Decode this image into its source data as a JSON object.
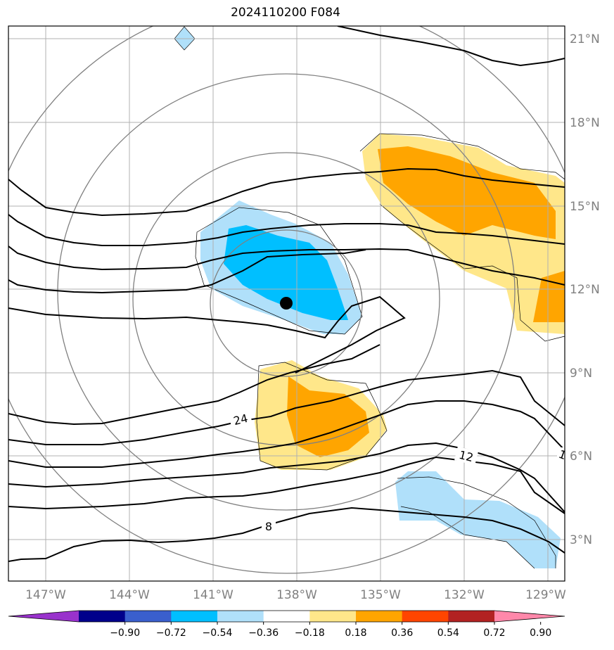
{
  "title": "2024110200 F084",
  "lon_ticks": [
    "147°W",
    "144°W",
    "141°W",
    "138°W",
    "135°W",
    "132°W",
    "129°W"
  ],
  "lat_ticks": [
    "21°N",
    "18°N",
    "15°N",
    "12°N",
    "9°N",
    "6°N",
    "3°N"
  ],
  "contour_labels": [
    "24",
    "12",
    "8",
    "1"
  ],
  "colorbar": {
    "ticks": [
      "−0.90",
      "−0.72",
      "−0.54",
      "−0.36",
      "−0.18",
      "0.18",
      "0.36",
      "0.54",
      "0.72",
      "0.90"
    ],
    "colors": [
      "#9932cc",
      "#00008b",
      "#3a5fcd",
      "#00bfff",
      "#b0e0fa",
      "#ffffff",
      "#ffe78a",
      "#ffa500",
      "#ff4500",
      "#b22222",
      "#ff88aa"
    ]
  },
  "colors": {
    "grid": "#b0b0b0",
    "range_rings": "#808080",
    "contour": "#000000",
    "center_marker": "#000000"
  }
}
